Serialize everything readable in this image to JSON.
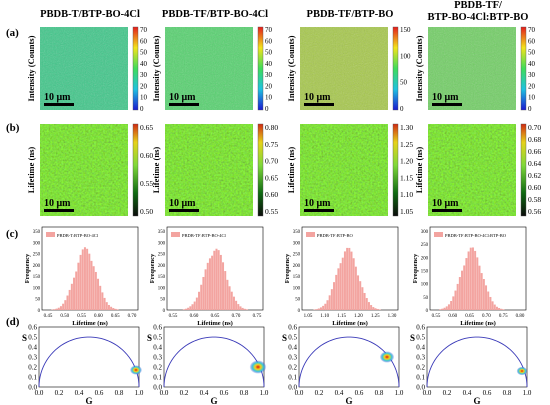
{
  "columns": [
    {
      "title": [
        "PBDB-T/BTP-BO-4Cl"
      ]
    },
    {
      "title": [
        "PBDB-TF/BTP-BO-4Cl"
      ]
    },
    {
      "title": [
        "PBDB-TF/BTP-BO"
      ]
    },
    {
      "title": [
        "PBDB-TF/",
        "BTP-BO-4Cl:BTP-BO"
      ]
    }
  ],
  "row_labels": [
    "(a)",
    "(b)",
    "(c)",
    "(d)"
  ],
  "scale_bar": "10 μm",
  "intensity": {
    "ylabel": "Intensity (Counts)",
    "colors": [
      "#1a3bd6",
      "#1fc2e0",
      "#3fdc5a",
      "#f2e31c",
      "#e83a1d"
    ],
    "panels": [
      {
        "base": "#3fc88a",
        "ticks": [
          "70",
          "60",
          "50",
          "40",
          "30",
          "20",
          "10",
          "0"
        ]
      },
      {
        "base": "#56d36f",
        "ticks": [
          "70",
          "60",
          "50",
          "40",
          "30",
          "20",
          "10",
          "0"
        ]
      },
      {
        "base": "#a7c94b",
        "ticks": [
          "150",
          "100",
          "50",
          "0"
        ]
      },
      {
        "base": "#72d065",
        "ticks": [
          "70",
          "60",
          "50",
          "40",
          "30",
          "20",
          "10",
          "0"
        ]
      }
    ]
  },
  "lifetime": {
    "ylabel": "Lifetime (ns)",
    "panels": [
      {
        "ticks": [
          "0.65",
          "0.60",
          "0.55",
          "0.50"
        ]
      },
      {
        "ticks": [
          "0.80",
          "0.75",
          "0.70",
          "0.65",
          "0.60",
          "0.55"
        ]
      },
      {
        "ticks": [
          "1.30",
          "1.25",
          "1.20",
          "1.15",
          "1.10",
          "1.05"
        ]
      },
      {
        "ticks": [
          "0.70",
          "0.68",
          "0.66",
          "0.64",
          "0.62",
          "0.60",
          "0.58",
          "0.56"
        ]
      }
    ]
  },
  "histograms": {
    "ylabel": "Frequency",
    "xlabel": "Lifetime (ns)",
    "bar_color": "#f3a4a0",
    "panels": [
      {
        "legend": "PBDB-T:BTP-BO-4Cl",
        "xticks": [
          "0.45",
          "0.50",
          "0.55",
          "0.60",
          "0.65",
          "0.70"
        ],
        "yticks": [
          "350",
          "300",
          "250",
          "200",
          "150",
          "100",
          "50",
          "0"
        ],
        "peak_frac": 0.4
      },
      {
        "legend": "PBDB-TF:BTP-BO-4Cl",
        "xticks": [
          "0.55",
          "0.60",
          "0.65",
          "0.70",
          "0.75"
        ],
        "yticks": [
          "350",
          "300",
          "250",
          "200",
          "150",
          "100",
          "50",
          "0"
        ],
        "peak_frac": 0.45
      },
      {
        "legend": "PBDB-TF:BTP-BO",
        "xticks": [
          "1.05",
          "1.10",
          "1.15",
          "1.20",
          "1.25",
          "1.30"
        ],
        "yticks": [
          "350",
          "300",
          "250",
          "200",
          "150",
          "100",
          "50",
          "0"
        ],
        "peak_frac": 0.42
      },
      {
        "legend": "PBDB-TF:BTP-BO-4Cl:BTP-BO",
        "xticks": [
          "0.55",
          "0.60",
          "0.65",
          "0.70",
          "0.75",
          "0.80"
        ],
        "yticks": [
          "300",
          "250",
          "200",
          "150",
          "100",
          "50",
          "0"
        ],
        "peak_frac": 0.38
      }
    ]
  },
  "phasor": {
    "xlabel": "G",
    "ylabel": "S",
    "xticks": [
      "0.0",
      "0.2",
      "0.4",
      "0.6",
      "0.8",
      "1.0"
    ],
    "yticks": [
      "0.6",
      "0.5",
      "0.4",
      "0.3",
      "0.2",
      "0.1",
      "0.0"
    ],
    "semicircle_color": "#3a3ab8",
    "panels": [
      {
        "g": 0.97,
        "s": 0.17,
        "size": 1.0
      },
      {
        "g": 0.94,
        "s": 0.2,
        "size": 1.4
      },
      {
        "g": 0.88,
        "s": 0.3,
        "size": 1.2
      },
      {
        "g": 0.95,
        "s": 0.16,
        "size": 0.9
      }
    ]
  }
}
